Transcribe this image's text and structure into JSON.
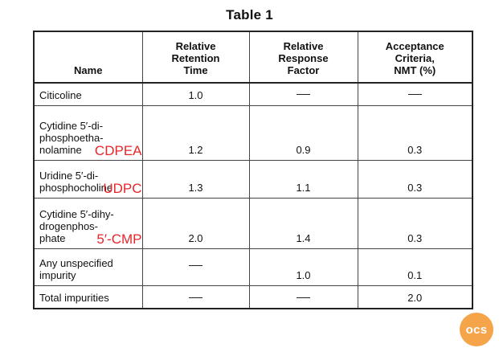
{
  "caption": "Table 1",
  "headers": {
    "name": "Name",
    "rrt": [
      "Relative",
      "Retention",
      "Time"
    ],
    "rrf": [
      "Relative",
      "Response",
      "Factor"
    ],
    "criteria": [
      "Acceptance",
      "Criteria,",
      "NMT (%)"
    ]
  },
  "rows": [
    {
      "name": [
        "Citicoline"
      ],
      "note": "",
      "rrt": "1.0",
      "rrf": "",
      "nmt": ""
    },
    {
      "name": [
        "Cytidine 5′-di-",
        "phosphoetha-",
        "nolamine"
      ],
      "note": "CDPEA",
      "rrt": "1.2",
      "rrf": "0.9",
      "nmt": "0.3"
    },
    {
      "name": [
        "Uridine 5′-di-",
        "phosphocholine"
      ],
      "note": "UDPC",
      "rrt": "1.3",
      "rrf": "1.1",
      "nmt": "0.3"
    },
    {
      "name": [
        "Cytidine 5′-dihy-",
        "drogenphos-",
        "phate"
      ],
      "note": "5′-CMP",
      "rrt": "2.0",
      "rrf": "1.4",
      "nmt": "0.3"
    },
    {
      "name": [
        "Any unspecified",
        "impurity"
      ],
      "note": "",
      "rrt": "",
      "rrf": "1.0",
      "nmt": "0.1"
    },
    {
      "name": [
        "Total impurities"
      ],
      "note": "",
      "rrt": "",
      "rrf": "",
      "nmt": "2.0"
    }
  ],
  "logo_text": "ocs"
}
